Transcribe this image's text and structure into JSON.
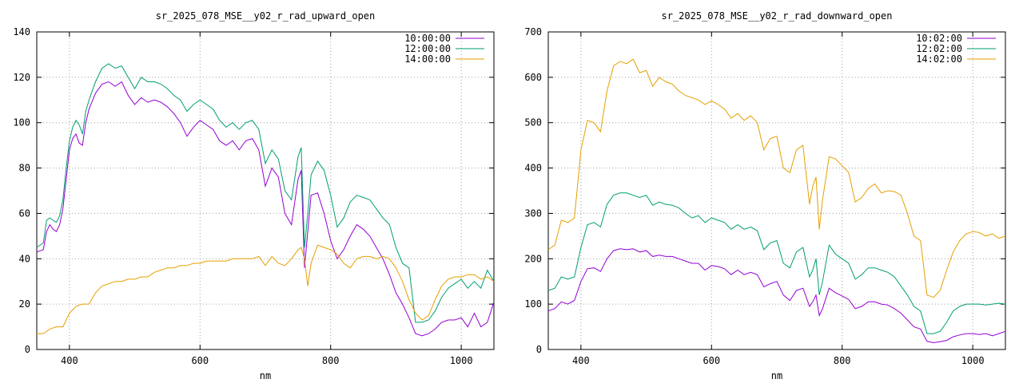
{
  "colors": {
    "series_purple": "#9400d3",
    "series_teal": "#009e73",
    "series_orange": "#e69f00",
    "grid": "#a0a0a0",
    "frame": "#000000"
  },
  "chart_data": [
    {
      "type": "line",
      "title": "sr_2025_078_MSE__y02_r_rad_upward_open",
      "xlabel": "nm",
      "ylabel": "",
      "xlim": [
        350,
        1050
      ],
      "ylim": [
        0,
        140
      ],
      "xticks": [
        400,
        600,
        800,
        1000
      ],
      "yticks": [
        0,
        20,
        40,
        60,
        80,
        100,
        120,
        140
      ],
      "grid": true,
      "legend_position": "top-right",
      "legend": [
        "10:00:00",
        "12:00:00",
        "14:00:00"
      ],
      "series": [
        {
          "name": "10:00:00",
          "color": "#9400d3",
          "x": [
            350,
            360,
            365,
            370,
            375,
            380,
            385,
            390,
            395,
            400,
            405,
            410,
            415,
            420,
            425,
            430,
            440,
            450,
            460,
            470,
            480,
            490,
            500,
            510,
            520,
            530,
            540,
            550,
            560,
            570,
            580,
            590,
            600,
            610,
            620,
            630,
            640,
            650,
            660,
            670,
            680,
            690,
            700,
            710,
            720,
            730,
            740,
            750,
            755,
            760,
            765,
            770,
            780,
            790,
            800,
            810,
            820,
            830,
            840,
            850,
            860,
            870,
            880,
            890,
            900,
            910,
            920,
            930,
            940,
            950,
            960,
            970,
            980,
            990,
            1000,
            1010,
            1020,
            1030,
            1040,
            1050
          ],
          "y": [
            43,
            44,
            52,
            55,
            53,
            52,
            55,
            62,
            75,
            88,
            93,
            95,
            91,
            90,
            100,
            106,
            113,
            117,
            118,
            116,
            118,
            112,
            108,
            111,
            109,
            110,
            109,
            107,
            104,
            100,
            94,
            98,
            101,
            99,
            97,
            92,
            90,
            92,
            88,
            92,
            93,
            88,
            72,
            80,
            76,
            60,
            55,
            75,
            79,
            36,
            52,
            68,
            69,
            60,
            48,
            40,
            44,
            50,
            55,
            53,
            50,
            45,
            40,
            33,
            25,
            20,
            14,
            7,
            6,
            7,
            9,
            12,
            13,
            13,
            14,
            10,
            16,
            10,
            12,
            21
          ]
        },
        {
          "name": "12:00:00",
          "color": "#009e73",
          "x": [
            350,
            360,
            365,
            370,
            375,
            380,
            385,
            390,
            395,
            400,
            405,
            410,
            415,
            420,
            425,
            430,
            440,
            450,
            460,
            470,
            480,
            490,
            500,
            510,
            520,
            530,
            540,
            550,
            560,
            570,
            580,
            590,
            600,
            610,
            620,
            630,
            640,
            650,
            660,
            670,
            680,
            690,
            700,
            710,
            720,
            730,
            740,
            750,
            755,
            760,
            765,
            770,
            780,
            790,
            800,
            810,
            820,
            830,
            840,
            850,
            860,
            870,
            880,
            890,
            900,
            910,
            920,
            930,
            940,
            950,
            960,
            970,
            980,
            990,
            1000,
            1010,
            1020,
            1030,
            1040,
            1050
          ],
          "y": [
            45,
            47,
            57,
            58,
            57,
            56,
            59,
            66,
            80,
            92,
            98,
            101,
            99,
            95,
            105,
            110,
            118,
            124,
            126,
            124,
            125,
            120,
            115,
            120,
            118,
            118,
            117,
            115,
            112,
            110,
            105,
            108,
            110,
            108,
            106,
            101,
            98,
            100,
            97,
            100,
            101,
            97,
            82,
            88,
            84,
            70,
            66,
            85,
            89,
            45,
            60,
            77,
            83,
            79,
            68,
            54,
            58,
            65,
            68,
            67,
            66,
            62,
            58,
            55,
            45,
            38,
            36,
            12,
            12,
            13,
            17,
            23,
            27,
            29,
            31,
            27,
            30,
            27,
            35,
            30
          ]
        },
        {
          "name": "14:00:00",
          "color": "#e69f00",
          "x": [
            350,
            360,
            370,
            380,
            390,
            400,
            410,
            420,
            430,
            440,
            450,
            460,
            470,
            480,
            490,
            500,
            510,
            520,
            530,
            540,
            550,
            560,
            570,
            580,
            590,
            600,
            610,
            620,
            630,
            640,
            650,
            660,
            670,
            680,
            690,
            700,
            710,
            720,
            730,
            740,
            750,
            755,
            760,
            765,
            770,
            780,
            790,
            800,
            810,
            820,
            830,
            840,
            850,
            860,
            870,
            880,
            890,
            900,
            910,
            920,
            930,
            940,
            950,
            960,
            970,
            980,
            990,
            1000,
            1010,
            1020,
            1030,
            1040,
            1050
          ],
          "y": [
            7,
            7,
            9,
            10,
            10,
            16,
            19,
            20,
            20,
            25,
            28,
            29,
            30,
            30,
            31,
            31,
            32,
            32,
            34,
            35,
            36,
            36,
            37,
            37,
            38,
            38,
            39,
            39,
            39,
            39,
            40,
            40,
            40,
            40,
            41,
            37,
            41,
            38,
            37,
            40,
            44,
            45,
            40,
            28,
            38,
            46,
            45,
            44,
            42,
            38,
            36,
            40,
            41,
            41,
            40,
            41,
            40,
            36,
            30,
            22,
            16,
            13,
            15,
            22,
            28,
            31,
            32,
            32,
            33,
            33,
            31,
            32,
            30
          ]
        }
      ]
    },
    {
      "type": "line",
      "title": "sr_2025_078_MSE__y02_r_rad_downward_open",
      "xlabel": "nm",
      "ylabel": "",
      "xlim": [
        350,
        1050
      ],
      "ylim": [
        0,
        700
      ],
      "xticks": [
        400,
        600,
        800,
        1000
      ],
      "yticks": [
        0,
        100,
        200,
        300,
        400,
        500,
        600,
        700
      ],
      "grid": true,
      "legend_position": "top-right",
      "legend": [
        "10:02:00",
        "12:02:00",
        "14:02:00"
      ],
      "series": [
        {
          "name": "10:02:00",
          "color": "#9400d3",
          "x": [
            350,
            360,
            370,
            380,
            390,
            400,
            410,
            420,
            430,
            440,
            450,
            460,
            470,
            480,
            490,
            500,
            510,
            520,
            530,
            540,
            550,
            560,
            570,
            580,
            590,
            600,
            610,
            620,
            630,
            640,
            650,
            660,
            670,
            680,
            690,
            700,
            710,
            720,
            730,
            740,
            750,
            755,
            760,
            765,
            770,
            780,
            790,
            800,
            810,
            820,
            830,
            840,
            850,
            860,
            870,
            880,
            890,
            900,
            910,
            920,
            930,
            940,
            950,
            960,
            970,
            980,
            990,
            1000,
            1010,
            1020,
            1030,
            1040,
            1050
          ],
          "y": [
            85,
            90,
            105,
            100,
            108,
            150,
            178,
            180,
            172,
            200,
            218,
            222,
            220,
            222,
            215,
            218,
            205,
            208,
            205,
            205,
            200,
            195,
            190,
            190,
            175,
            185,
            183,
            178,
            165,
            175,
            165,
            170,
            165,
            138,
            145,
            150,
            120,
            108,
            130,
            135,
            95,
            105,
            120,
            75,
            90,
            135,
            125,
            118,
            110,
            90,
            95,
            105,
            105,
            100,
            98,
            90,
            80,
            65,
            50,
            45,
            18,
            15,
            17,
            20,
            28,
            32,
            35,
            35,
            33,
            35,
            30,
            35,
            40
          ]
        },
        {
          "name": "12:02:00",
          "color": "#009e73",
          "x": [
            350,
            360,
            370,
            380,
            390,
            400,
            410,
            420,
            430,
            440,
            450,
            460,
            470,
            480,
            490,
            500,
            510,
            520,
            530,
            540,
            550,
            560,
            570,
            580,
            590,
            600,
            610,
            620,
            630,
            640,
            650,
            660,
            670,
            680,
            690,
            700,
            710,
            720,
            730,
            740,
            750,
            755,
            760,
            765,
            770,
            780,
            790,
            800,
            810,
            820,
            830,
            840,
            850,
            860,
            870,
            880,
            890,
            900,
            910,
            920,
            930,
            940,
            950,
            960,
            970,
            980,
            990,
            1000,
            1010,
            1020,
            1030,
            1040,
            1050
          ],
          "y": [
            130,
            135,
            160,
            155,
            160,
            225,
            275,
            280,
            270,
            320,
            340,
            345,
            345,
            340,
            335,
            340,
            318,
            325,
            320,
            318,
            312,
            300,
            290,
            295,
            280,
            290,
            285,
            280,
            265,
            275,
            265,
            270,
            262,
            220,
            235,
            240,
            190,
            180,
            215,
            225,
            160,
            175,
            200,
            120,
            150,
            230,
            210,
            200,
            190,
            155,
            165,
            180,
            180,
            175,
            170,
            160,
            140,
            120,
            95,
            85,
            35,
            35,
            40,
            60,
            85,
            95,
            100,
            100,
            100,
            98,
            100,
            102,
            100
          ]
        },
        {
          "name": "14:02:00",
          "color": "#e69f00",
          "x": [
            350,
            360,
            370,
            380,
            390,
            400,
            410,
            420,
            430,
            440,
            450,
            460,
            470,
            480,
            490,
            500,
            510,
            520,
            530,
            540,
            550,
            560,
            570,
            580,
            590,
            600,
            610,
            620,
            630,
            640,
            650,
            660,
            670,
            680,
            690,
            700,
            710,
            720,
            730,
            740,
            750,
            755,
            760,
            765,
            770,
            780,
            790,
            800,
            810,
            820,
            830,
            840,
            850,
            860,
            870,
            880,
            890,
            900,
            910,
            920,
            930,
            940,
            950,
            960,
            970,
            980,
            990,
            1000,
            1010,
            1020,
            1030,
            1040,
            1050
          ],
          "y": [
            220,
            230,
            285,
            280,
            290,
            440,
            505,
            500,
            480,
            570,
            625,
            635,
            630,
            640,
            610,
            615,
            580,
            600,
            590,
            585,
            570,
            560,
            555,
            550,
            540,
            548,
            540,
            530,
            510,
            520,
            505,
            515,
            500,
            440,
            465,
            470,
            400,
            390,
            440,
            450,
            320,
            360,
            380,
            265,
            330,
            425,
            420,
            405,
            390,
            325,
            335,
            355,
            365,
            345,
            350,
            348,
            340,
            300,
            250,
            240,
            120,
            115,
            130,
            175,
            215,
            240,
            255,
            260,
            258,
            250,
            255,
            245,
            250
          ]
        }
      ]
    }
  ]
}
